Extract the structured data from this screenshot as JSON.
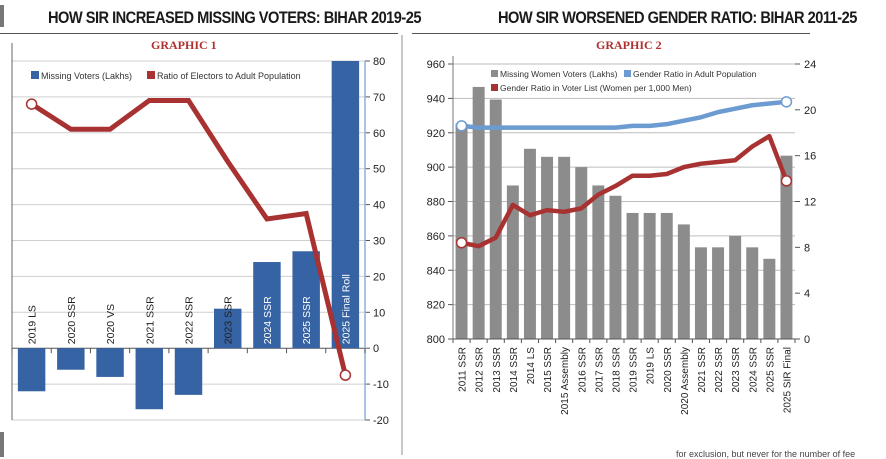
{
  "graphic1": {
    "headline": "HOW SIR INCREASED MISSING VOTERS: BIHAR 2019-25",
    "subtitle": "GRAPHIC 1"
  },
  "graphic2": {
    "headline": "HOW SIR WORSENED GENDER RATIO: BIHAR 2011-25",
    "subtitle": "GRAPHIC 2"
  },
  "footer": {
    "fragment": "for exclusion, but never for the number of fee"
  },
  "colors": {
    "missing_voters_bar": "#3563a3",
    "ratio_line": "#a83232",
    "missing_women_bar": "#8c8c8c",
    "adult_gender_line": "#6b9bd1",
    "voter_gender_line": "#a83232",
    "headline_text": "#1a1a1a",
    "subtitle_text": "#b03030"
  },
  "chart_data": [
    {
      "type": "bar",
      "id": "graphic1",
      "title": "GRAPHIC 1",
      "categories": [
        "2019 LS",
        "2020 SSR",
        "2020 VS",
        "2021 SSR",
        "2022 SSR",
        "2023 SSR",
        "2024 SSR",
        "2025 SSR",
        "2025 Final Roll"
      ],
      "series": [
        {
          "name": "Missing Voters (Lakhs)",
          "kind": "bar",
          "axis": "right",
          "values": [
            -12,
            -6,
            -8,
            -17,
            -13,
            11,
            24,
            27,
            80
          ]
        },
        {
          "name": "Ratio of Electors to Adult Population",
          "kind": "line",
          "axis": "right",
          "values": [
            68,
            61,
            61,
            69,
            69,
            52,
            36,
            37.5,
            -7.5
          ]
        }
      ],
      "xlabel": "",
      "ylabel": "",
      "right_axis": {
        "ylim": [
          -20,
          80
        ],
        "ticks": [
          80,
          70,
          60,
          50,
          40,
          30,
          20,
          10,
          0,
          -10,
          -20
        ]
      },
      "grid": true,
      "legend": "top-left"
    },
    {
      "type": "bar",
      "id": "graphic2",
      "title": "GRAPHIC 2",
      "categories": [
        "2011 SSR",
        "2012 SSR",
        "2013 SSR",
        "2014 SSR",
        "2014 LS",
        "2015 SSR",
        "2015 Assembly",
        "2016 SSR",
        "2017 SSR",
        "2018 SSR",
        "2019 SSR",
        "2019 LS",
        "2020 SSR",
        "2020 Assembly",
        "2021 SSR",
        "2022 SSR",
        "2023 SSR",
        "2024 SSR",
        "2025 SSR",
        "2025 SIR Final"
      ],
      "series": [
        {
          "name": "Missing Women Voters (Lakhs)",
          "kind": "bar",
          "axis": "right",
          "values": [
            18.8,
            22,
            20.9,
            13.4,
            16.6,
            15.9,
            15.9,
            15,
            13.4,
            12.5,
            11,
            11,
            11,
            10,
            8,
            8,
            9,
            8,
            7,
            16
          ]
        },
        {
          "name": "Gender Ratio in Adult Population",
          "kind": "line",
          "axis": "left",
          "values": [
            924,
            923,
            923,
            923,
            923,
            923,
            923,
            923,
            923,
            923,
            924,
            924,
            925,
            927,
            929,
            932,
            934,
            936,
            937,
            938
          ]
        },
        {
          "name": "Gender Ratio in Voter List (Women per 1,000 Men)",
          "kind": "line",
          "axis": "left",
          "values": [
            856,
            854,
            859,
            878,
            872,
            875,
            874,
            876,
            884,
            889,
            895,
            895,
            896,
            900,
            902,
            903,
            904,
            912,
            918,
            892
          ]
        }
      ],
      "left_axis": {
        "ylim": [
          800,
          960
        ],
        "ticks": [
          960,
          940,
          920,
          900,
          880,
          860,
          840,
          820,
          800
        ]
      },
      "right_axis": {
        "ylim": [
          0,
          24
        ],
        "ticks": [
          24,
          20,
          16,
          12,
          8,
          4,
          0
        ]
      },
      "grid": true,
      "legend": "top-left"
    }
  ]
}
